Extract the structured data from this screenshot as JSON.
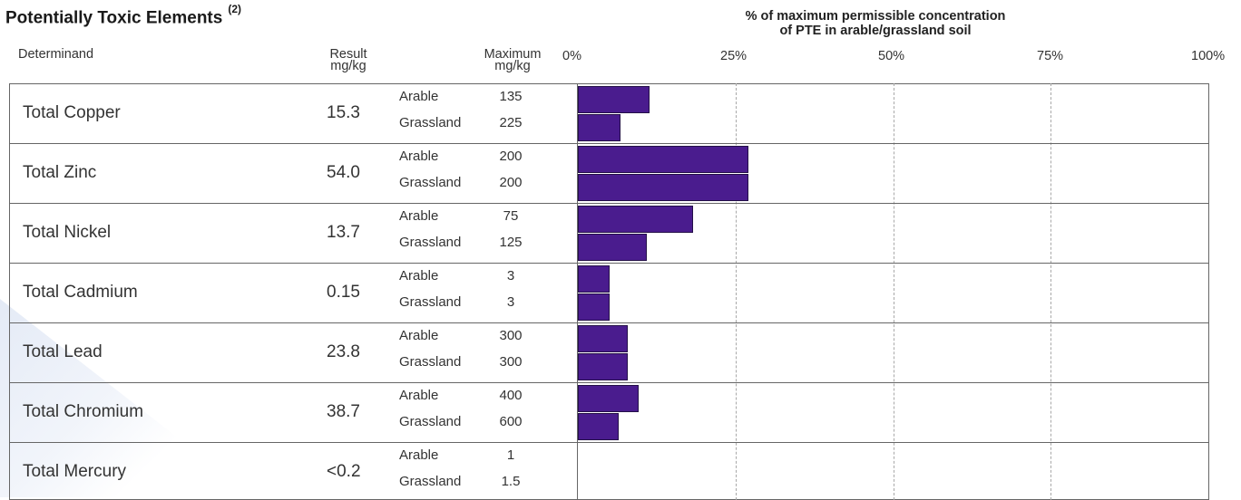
{
  "page": {
    "title": "Potentially Toxic Elements",
    "title_sup": "(2)"
  },
  "colors": {
    "bar": "#4a1c8e",
    "bar_border": "#241048"
  },
  "chart_data": {
    "type": "bar",
    "orientation": "horizontal",
    "title_line1": "% of maximum permissible concentration",
    "title_line2": "of PTE in arable/grassland soil",
    "xlim": [
      0,
      100
    ],
    "x_ticks": [
      "0%",
      "25%",
      "50%",
      "75%",
      "100%"
    ],
    "grid": "vertical dashed",
    "columns": {
      "determinand": "Determinand",
      "result_l1": "Result",
      "result_l2": "mg/kg",
      "maximum_l1": "Maximum",
      "maximum_l2": "mg/kg"
    },
    "rows": [
      {
        "name": "Total Copper",
        "result": "15.3",
        "arable_label": "Arable",
        "arable_max": "135",
        "arable_pct": 11.3,
        "grassland_label": "Grassland",
        "grassland_max": "225",
        "grassland_pct": 6.8
      },
      {
        "name": "Total Zinc",
        "result": "54.0",
        "arable_label": "Arable",
        "arable_max": "200",
        "arable_pct": 27.0,
        "grassland_label": "Grassland",
        "grassland_max": "200",
        "grassland_pct": 27.0
      },
      {
        "name": "Total Nickel",
        "result": "13.7",
        "arable_label": "Arable",
        "arable_max": "75",
        "arable_pct": 18.3,
        "grassland_label": "Grassland",
        "grassland_max": "125",
        "grassland_pct": 11.0
      },
      {
        "name": "Total Cadmium",
        "result": "0.15",
        "arable_label": "Arable",
        "arable_max": "3",
        "arable_pct": 5.0,
        "grassland_label": "Grassland",
        "grassland_max": "3",
        "grassland_pct": 5.0
      },
      {
        "name": "Total Lead",
        "result": "23.8",
        "arable_label": "Arable",
        "arable_max": "300",
        "arable_pct": 7.9,
        "grassland_label": "Grassland",
        "grassland_max": "300",
        "grassland_pct": 7.9
      },
      {
        "name": "Total Chromium",
        "result": "38.7",
        "arable_label": "Arable",
        "arable_max": "400",
        "arable_pct": 9.7,
        "grassland_label": "Grassland",
        "grassland_max": "600",
        "grassland_pct": 6.5
      },
      {
        "name": "Total Mercury",
        "result": "<0.2",
        "arable_label": "Arable",
        "arable_max": "1",
        "arable_pct": null,
        "grassland_label": "Grassland",
        "grassland_max": "1.5",
        "grassland_pct": null
      }
    ]
  }
}
